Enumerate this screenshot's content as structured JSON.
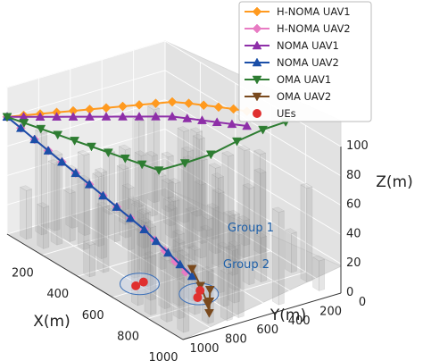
{
  "chart_data": {
    "type": "scatter",
    "projection": "3d",
    "xlabel": "X(m)",
    "ylabel": "Y(m)",
    "zlabel": "Z(m)",
    "xlim": [
      0,
      1000
    ],
    "ylim": [
      0,
      1000
    ],
    "zlim": [
      0,
      100
    ],
    "x_ticks": [
      "0",
      "200",
      "400",
      "600",
      "800",
      "1000"
    ],
    "y_ticks": [
      "0",
      "200",
      "400",
      "600",
      "800",
      "1000"
    ],
    "z_ticks": [
      "0",
      "20",
      "40",
      "60",
      "80",
      "100"
    ],
    "grid": true,
    "legend_position": "top-right",
    "series": [
      {
        "name": "H-NOMA UAV1",
        "color": "#ff9a1f",
        "marker": "diamond",
        "points": [
          [
            0,
            1000,
            80
          ],
          [
            40,
            940,
            82
          ],
          [
            80,
            880,
            84
          ],
          [
            120,
            820,
            86
          ],
          [
            160,
            760,
            88
          ],
          [
            200,
            700,
            90
          ],
          [
            240,
            640,
            92
          ],
          [
            280,
            580,
            94
          ],
          [
            320,
            520,
            96
          ],
          [
            360,
            460,
            98
          ],
          [
            400,
            400,
            100
          ],
          [
            440,
            340,
            100
          ],
          [
            480,
            290,
            100
          ],
          [
            520,
            240,
            100
          ],
          [
            560,
            190,
            100
          ],
          [
            600,
            150,
            100
          ]
        ]
      },
      {
        "name": "H-NOMA UAV2",
        "color": "#e87bc3",
        "marker": "diamond",
        "points": [
          [
            0,
            1000,
            80
          ],
          [
            60,
            980,
            76
          ],
          [
            120,
            960,
            72
          ],
          [
            180,
            940,
            68
          ],
          [
            240,
            920,
            64
          ],
          [
            300,
            900,
            60
          ],
          [
            360,
            880,
            56
          ],
          [
            420,
            860,
            52
          ],
          [
            480,
            840,
            48
          ],
          [
            540,
            820,
            44
          ],
          [
            600,
            800,
            40
          ],
          [
            650,
            790,
            36
          ],
          [
            700,
            780,
            32
          ],
          [
            750,
            770,
            28
          ],
          [
            800,
            760,
            24
          ]
        ]
      },
      {
        "name": "NOMA UAV1",
        "color": "#8e2fa8",
        "marker": "triangle-up",
        "points": [
          [
            0,
            1000,
            80
          ],
          [
            40,
            940,
            81
          ],
          [
            80,
            880,
            82
          ],
          [
            120,
            820,
            83
          ],
          [
            160,
            760,
            84
          ],
          [
            200,
            700,
            85
          ],
          [
            240,
            640,
            86
          ],
          [
            280,
            580,
            87
          ],
          [
            320,
            520,
            88
          ],
          [
            360,
            460,
            89
          ],
          [
            400,
            400,
            90
          ],
          [
            440,
            350,
            90
          ],
          [
            480,
            300,
            90
          ],
          [
            520,
            250,
            90
          ],
          [
            560,
            200,
            90
          ],
          [
            600,
            150,
            90
          ]
        ]
      },
      {
        "name": "NOMA UAV2",
        "color": "#1b4fa8",
        "marker": "triangle-up",
        "points": [
          [
            0,
            1000,
            80
          ],
          [
            60,
            980,
            76
          ],
          [
            120,
            960,
            72
          ],
          [
            180,
            940,
            68
          ],
          [
            240,
            920,
            64
          ],
          [
            300,
            900,
            60
          ],
          [
            360,
            880,
            56
          ],
          [
            420,
            860,
            52
          ],
          [
            480,
            840,
            48
          ],
          [
            540,
            820,
            44
          ],
          [
            600,
            800,
            40
          ],
          [
            650,
            780,
            35
          ],
          [
            700,
            760,
            30
          ],
          [
            750,
            740,
            25
          ],
          [
            800,
            720,
            20
          ]
        ]
      },
      {
        "name": "OMA UAV1",
        "color": "#2e7d32",
        "marker": "triangle-down",
        "points": [
          [
            0,
            1000,
            80
          ],
          [
            60,
            960,
            79
          ],
          [
            120,
            920,
            78
          ],
          [
            180,
            880,
            77
          ],
          [
            240,
            840,
            76
          ],
          [
            300,
            800,
            75
          ],
          [
            360,
            760,
            74
          ],
          [
            420,
            720,
            73
          ],
          [
            480,
            680,
            72
          ],
          [
            540,
            640,
            71
          ],
          [
            580,
            520,
            75
          ],
          [
            620,
            400,
            80
          ],
          [
            660,
            280,
            88
          ],
          [
            700,
            160,
            95
          ],
          [
            740,
            60,
            100
          ]
        ]
      },
      {
        "name": "OMA UAV2",
        "color": "#7a4a1e",
        "marker": "triangle-down",
        "points": [
          [
            800,
            720,
            25
          ],
          [
            830,
            700,
            15
          ],
          [
            860,
            690,
            5
          ],
          [
            880,
            700,
            0
          ],
          [
            900,
            720,
            10
          ],
          [
            920,
            740,
            20
          ]
        ]
      },
      {
        "name": "UEs",
        "color": "#e03030",
        "marker": "circle",
        "points": [
          [
            560,
            760,
            0
          ],
          [
            570,
            820,
            0
          ],
          [
            720,
            580,
            0
          ],
          [
            760,
            640,
            0
          ]
        ]
      }
    ],
    "annotations": [
      "Group 1",
      "Group 2"
    ]
  }
}
